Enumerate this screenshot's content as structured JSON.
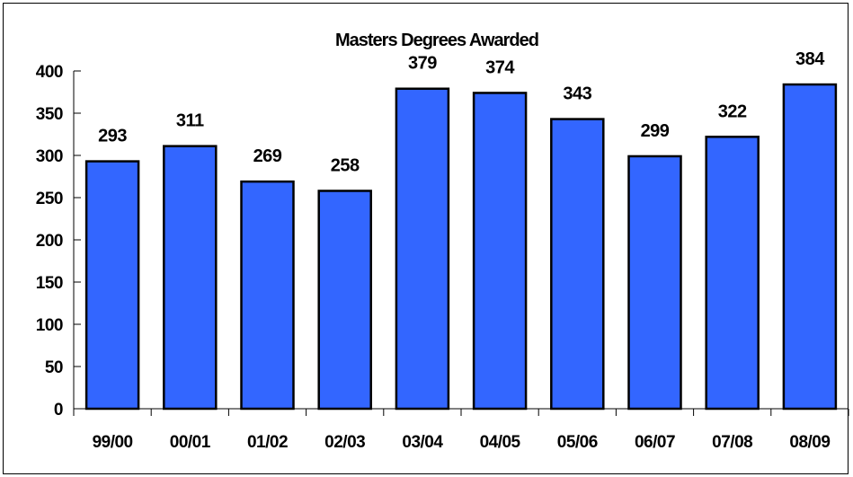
{
  "chart_data": {
    "type": "bar",
    "title": "Masters Degrees Awarded",
    "xlabel": "",
    "ylabel": "",
    "categories": [
      "99/00",
      "00/01",
      "01/02",
      "02/03",
      "03/04",
      "04/05",
      "05/06",
      "06/07",
      "07/08",
      "08/09"
    ],
    "series": [
      {
        "values": [
          293,
          311,
          269,
          258,
          379,
          374,
          343,
          299,
          322,
          384
        ]
      }
    ],
    "yticks": [
      0,
      50,
      100,
      150,
      200,
      250,
      300,
      350,
      400
    ],
    "ylim": [
      0,
      400
    ],
    "grid": false,
    "data_labels": true,
    "legend": "none",
    "colors": {
      "bar_fill": "#3366ff",
      "bar_stroke": "#000000",
      "axis": "#000000",
      "text": "#000000"
    }
  }
}
